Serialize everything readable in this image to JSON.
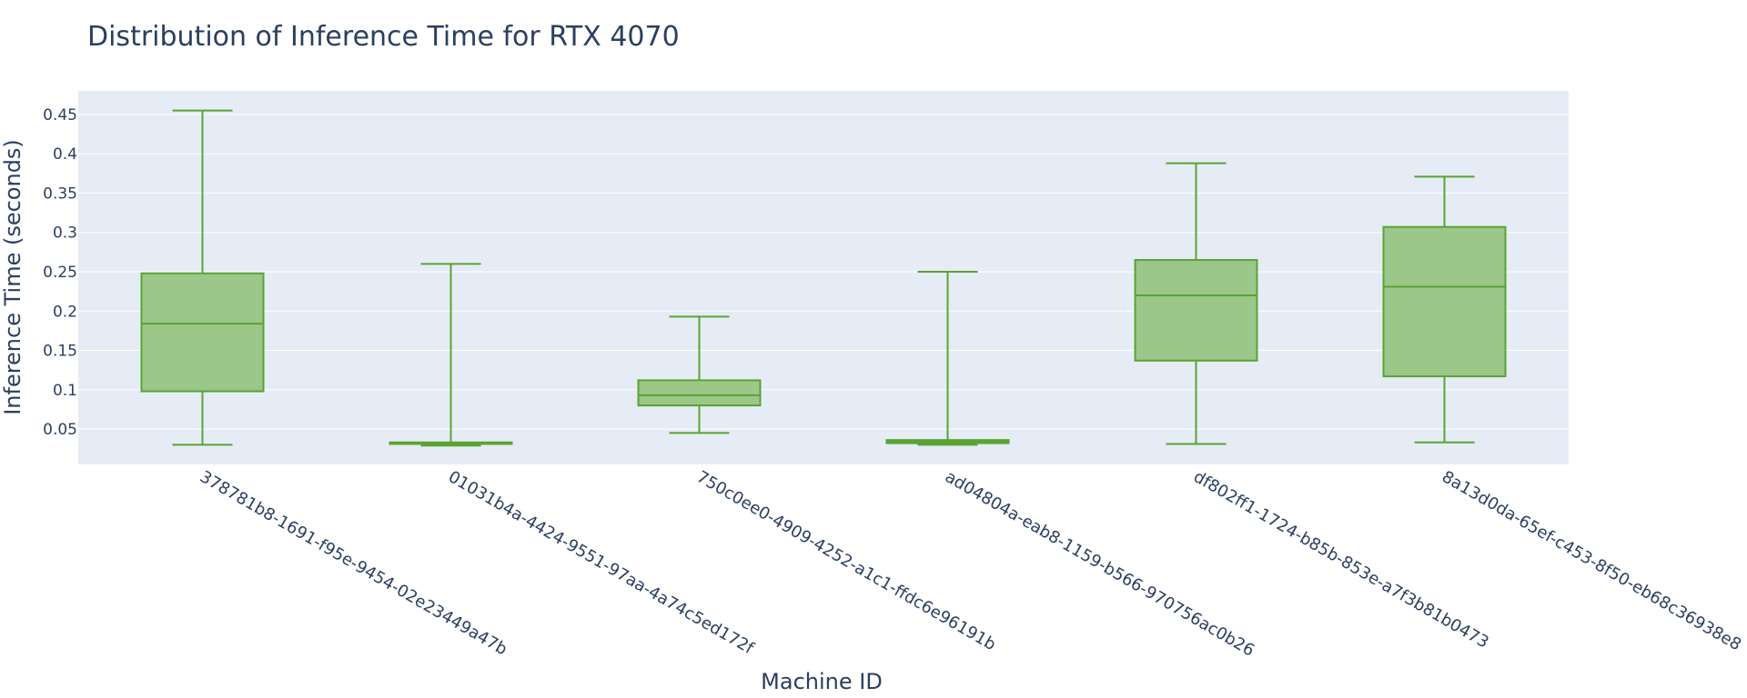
{
  "chart_data": {
    "type": "box",
    "title": "Distribution of Inference Time for RTX 4070",
    "xlabel": "Machine ID",
    "ylabel": "Inference Time (seconds)",
    "ylim": [
      0.005,
      0.48
    ],
    "yticks": [
      0.05,
      0.1,
      0.15,
      0.2,
      0.25,
      0.3,
      0.35,
      0.4,
      0.45
    ],
    "ytick_labels": [
      "0.05",
      "0.1",
      "0.15",
      "0.2",
      "0.25",
      "0.3",
      "0.35",
      "0.4",
      "0.45"
    ],
    "grid": true,
    "colors": {
      "box_fill": "#9bc78a",
      "box_line": "#5aa331",
      "plot_bg": "#e5ecf6",
      "grid": "#ffffff"
    },
    "categories": [
      "378781b8-1691-f95e-9454-02e23449a47b",
      "01031b4a-4424-9551-97aa-4a74c5ed172f",
      "750c0ee0-4909-4252-a1c1-ffdc6e96191b",
      "ad04804a-eab8-1159-b566-970756ac0b26",
      "df802ff1-1724-b85b-853e-a7f3b81b0473",
      "8a13d0da-65ef-c453-8f50-eb68c36938e8"
    ],
    "boxes": [
      {
        "min": 0.03,
        "q1": 0.098,
        "median": 0.184,
        "q3": 0.248,
        "max": 0.455
      },
      {
        "min": 0.029,
        "q1": 0.031,
        "median": 0.032,
        "q3": 0.033,
        "max": 0.26
      },
      {
        "min": 0.045,
        "q1": 0.08,
        "median": 0.093,
        "q3": 0.112,
        "max": 0.193
      },
      {
        "min": 0.03,
        "q1": 0.032,
        "median": 0.034,
        "q3": 0.036,
        "max": 0.25
      },
      {
        "min": 0.031,
        "q1": 0.137,
        "median": 0.22,
        "q3": 0.265,
        "max": 0.388
      },
      {
        "min": 0.033,
        "q1": 0.117,
        "median": 0.231,
        "q3": 0.307,
        "max": 0.371
      }
    ]
  }
}
